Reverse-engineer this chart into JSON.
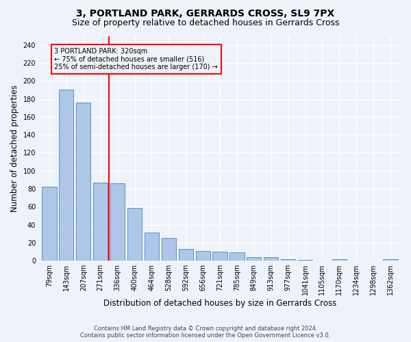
{
  "title": "3, PORTLAND PARK, GERRARDS CROSS, SL9 7PX",
  "subtitle": "Size of property relative to detached houses in Gerrards Cross",
  "xlabel": "Distribution of detached houses by size in Gerrards Cross",
  "ylabel": "Number of detached properties",
  "footer_line1": "Contains HM Land Registry data © Crown copyright and database right 2024.",
  "footer_line2": "Contains public sector information licensed under the Open Government Licence v3.0.",
  "bar_labels": [
    "79sqm",
    "143sqm",
    "207sqm",
    "271sqm",
    "336sqm",
    "400sqm",
    "464sqm",
    "528sqm",
    "592sqm",
    "656sqm",
    "721sqm",
    "785sqm",
    "849sqm",
    "913sqm",
    "977sqm",
    "1041sqm",
    "1105sqm",
    "1170sqm",
    "1234sqm",
    "1298sqm",
    "1362sqm"
  ],
  "bar_values": [
    82,
    190,
    176,
    87,
    86,
    59,
    31,
    25,
    13,
    11,
    10,
    9,
    4,
    4,
    2,
    1,
    0,
    2,
    0,
    0,
    2
  ],
  "bar_color": "#aec6e8",
  "bar_edge_color": "#5b8fc9",
  "vline_x_index": 3.5,
  "vline_color": "red",
  "annotation_text": "3 PORTLAND PARK: 320sqm\n← 75% of detached houses are smaller (516)\n25% of semi-detached houses are larger (170) →",
  "annotation_box_color": "red",
  "annotation_text_color": "black",
  "ylim": [
    0,
    250
  ],
  "yticks": [
    0,
    20,
    40,
    60,
    80,
    100,
    120,
    140,
    160,
    180,
    200,
    220,
    240
  ],
  "background_color": "#eef2f9",
  "grid_color": "white",
  "title_fontsize": 10,
  "subtitle_fontsize": 9,
  "xlabel_fontsize": 8.5,
  "ylabel_fontsize": 8.5,
  "tick_fontsize": 7,
  "footer_fontsize": 6,
  "annotation_fontsize": 7
}
